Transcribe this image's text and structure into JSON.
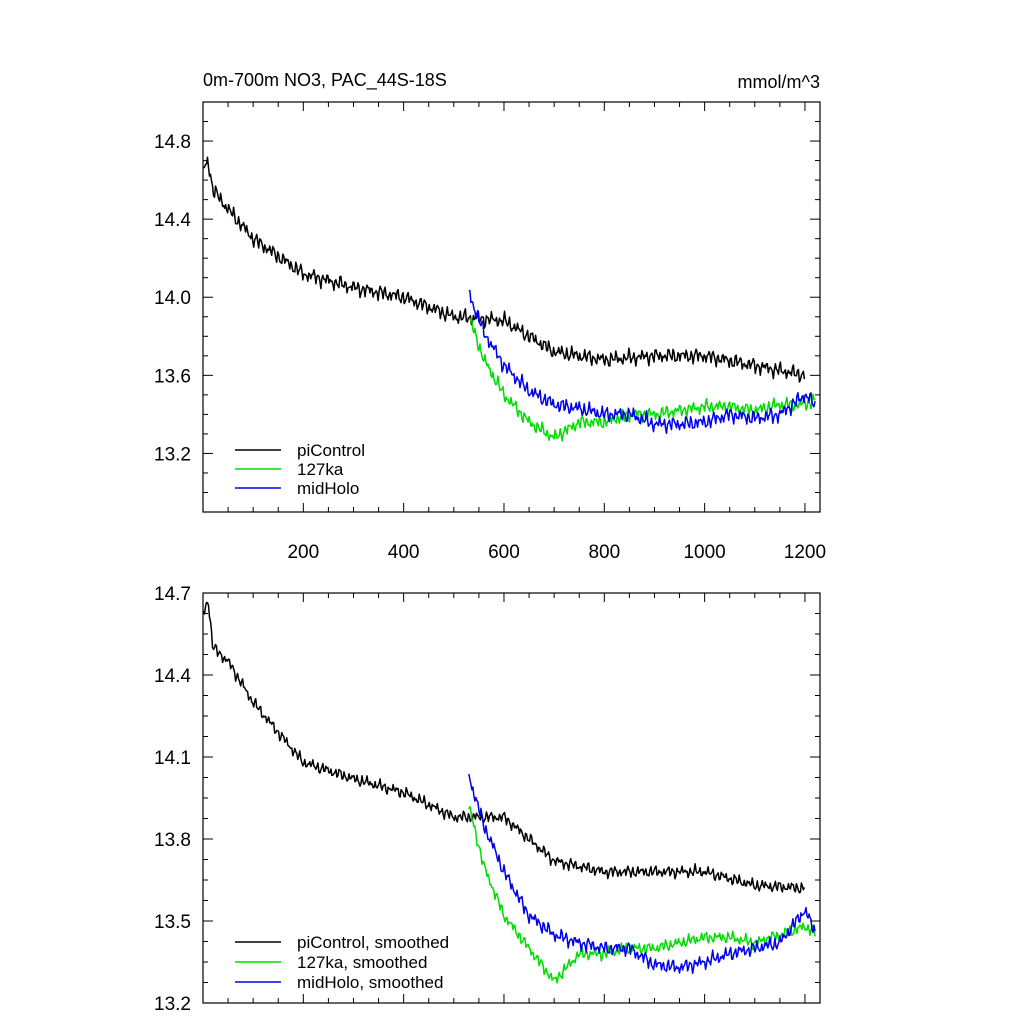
{
  "chart_data": [
    {
      "type": "line",
      "title": "0m-700m NO3, PAC_44S-18S",
      "units": "mmol/m^3",
      "xlim": [
        0,
        1230
      ],
      "ylim": [
        12.9,
        15.0
      ],
      "x_ticks": [
        200,
        400,
        600,
        800,
        1000,
        1200
      ],
      "x_tick_labels": [
        "200",
        "400",
        "600",
        "800",
        "1000",
        "1200"
      ],
      "y_ticks": [
        13.2,
        13.6,
        14.0,
        14.4,
        14.8
      ],
      "y_tick_labels": [
        "13.2",
        "13.6",
        "14.0",
        "14.4",
        "14.8"
      ],
      "legend_position": "bottom-left",
      "series": [
        {
          "name": "piControl",
          "color": "#000000",
          "x_start": 1,
          "x_end": 1200,
          "noise": 0.045,
          "anchors": [
            [
              1,
              14.65
            ],
            [
              10,
              14.7
            ],
            [
              20,
              14.55
            ],
            [
              50,
              14.45
            ],
            [
              100,
              14.3
            ],
            [
              200,
              14.12
            ],
            [
              300,
              14.05
            ],
            [
              400,
              14.0
            ],
            [
              500,
              13.9
            ],
            [
              600,
              13.88
            ],
            [
              700,
              13.72
            ],
            [
              800,
              13.68
            ],
            [
              900,
              13.7
            ],
            [
              1000,
              13.7
            ],
            [
              1100,
              13.65
            ],
            [
              1200,
              13.6
            ]
          ]
        },
        {
          "name": "127ka",
          "color": "#00dd00",
          "x_start": 530,
          "x_end": 1220,
          "noise": 0.04,
          "anchors": [
            [
              530,
              13.9
            ],
            [
              560,
              13.68
            ],
            [
              600,
              13.5
            ],
            [
              650,
              13.36
            ],
            [
              700,
              13.28
            ],
            [
              750,
              13.36
            ],
            [
              800,
              13.36
            ],
            [
              850,
              13.4
            ],
            [
              900,
              13.4
            ],
            [
              950,
              13.42
            ],
            [
              1000,
              13.44
            ],
            [
              1050,
              13.44
            ],
            [
              1100,
              13.42
            ],
            [
              1150,
              13.45
            ],
            [
              1200,
              13.45
            ],
            [
              1220,
              13.47
            ]
          ]
        },
        {
          "name": "midHolo",
          "color": "#0000ee",
          "x_start": 530,
          "x_end": 1220,
          "noise": 0.045,
          "anchors": [
            [
              530,
              14.02
            ],
            [
              560,
              13.82
            ],
            [
              600,
              13.65
            ],
            [
              650,
              13.52
            ],
            [
              700,
              13.45
            ],
            [
              750,
              13.43
            ],
            [
              800,
              13.4
            ],
            [
              850,
              13.4
            ],
            [
              900,
              13.35
            ],
            [
              950,
              13.35
            ],
            [
              1000,
              13.36
            ],
            [
              1050,
              13.4
            ],
            [
              1100,
              13.38
            ],
            [
              1150,
              13.4
            ],
            [
              1200,
              13.5
            ],
            [
              1220,
              13.45
            ]
          ]
        }
      ]
    },
    {
      "type": "line",
      "title": "",
      "xlim": [
        0,
        1230
      ],
      "ylim": [
        13.2,
        14.7
      ],
      "x_ticks": [
        200,
        400,
        600,
        800,
        1000,
        1200
      ],
      "y_ticks": [
        13.2,
        13.5,
        13.8,
        14.1,
        14.4,
        14.7
      ],
      "y_tick_labels": [
        "13.2",
        "13.5",
        "13.8",
        "14.1",
        "14.4",
        "14.7"
      ],
      "legend_position": "bottom-left",
      "series": [
        {
          "name": "piControl, smoothed",
          "color": "#000000",
          "x_start": 1,
          "x_end": 1200,
          "noise": 0.025,
          "anchors": [
            [
              1,
              14.62
            ],
            [
              10,
              14.68
            ],
            [
              20,
              14.5
            ],
            [
              50,
              14.45
            ],
            [
              100,
              14.3
            ],
            [
              200,
              14.08
            ],
            [
              300,
              14.02
            ],
            [
              400,
              13.97
            ],
            [
              500,
              13.88
            ],
            [
              600,
              13.88
            ],
            [
              700,
              13.72
            ],
            [
              800,
              13.68
            ],
            [
              900,
              13.68
            ],
            [
              1000,
              13.68
            ],
            [
              1100,
              13.63
            ],
            [
              1200,
              13.62
            ]
          ]
        },
        {
          "name": "127ka, smoothed",
          "color": "#00dd00",
          "x_start": 530,
          "x_end": 1220,
          "noise": 0.025,
          "anchors": [
            [
              530,
              13.92
            ],
            [
              560,
              13.7
            ],
            [
              600,
              13.52
            ],
            [
              650,
              13.4
            ],
            [
              700,
              13.28
            ],
            [
              750,
              13.38
            ],
            [
              800,
              13.38
            ],
            [
              850,
              13.4
            ],
            [
              900,
              13.4
            ],
            [
              950,
              13.42
            ],
            [
              1000,
              13.44
            ],
            [
              1050,
              13.44
            ],
            [
              1100,
              13.42
            ],
            [
              1150,
              13.45
            ],
            [
              1200,
              13.48
            ],
            [
              1220,
              13.46
            ]
          ]
        },
        {
          "name": "midHolo, smoothed",
          "color": "#0000ee",
          "x_start": 530,
          "x_end": 1220,
          "noise": 0.03,
          "anchors": [
            [
              530,
              14.03
            ],
            [
              560,
              13.85
            ],
            [
              600,
              13.68
            ],
            [
              650,
              13.52
            ],
            [
              700,
              13.45
            ],
            [
              750,
              13.42
            ],
            [
              800,
              13.4
            ],
            [
              850,
              13.4
            ],
            [
              900,
              13.34
            ],
            [
              950,
              13.33
            ],
            [
              1000,
              13.35
            ],
            [
              1050,
              13.38
            ],
            [
              1100,
              13.4
            ],
            [
              1150,
              13.42
            ],
            [
              1200,
              13.54
            ],
            [
              1220,
              13.46
            ]
          ]
        }
      ]
    }
  ]
}
